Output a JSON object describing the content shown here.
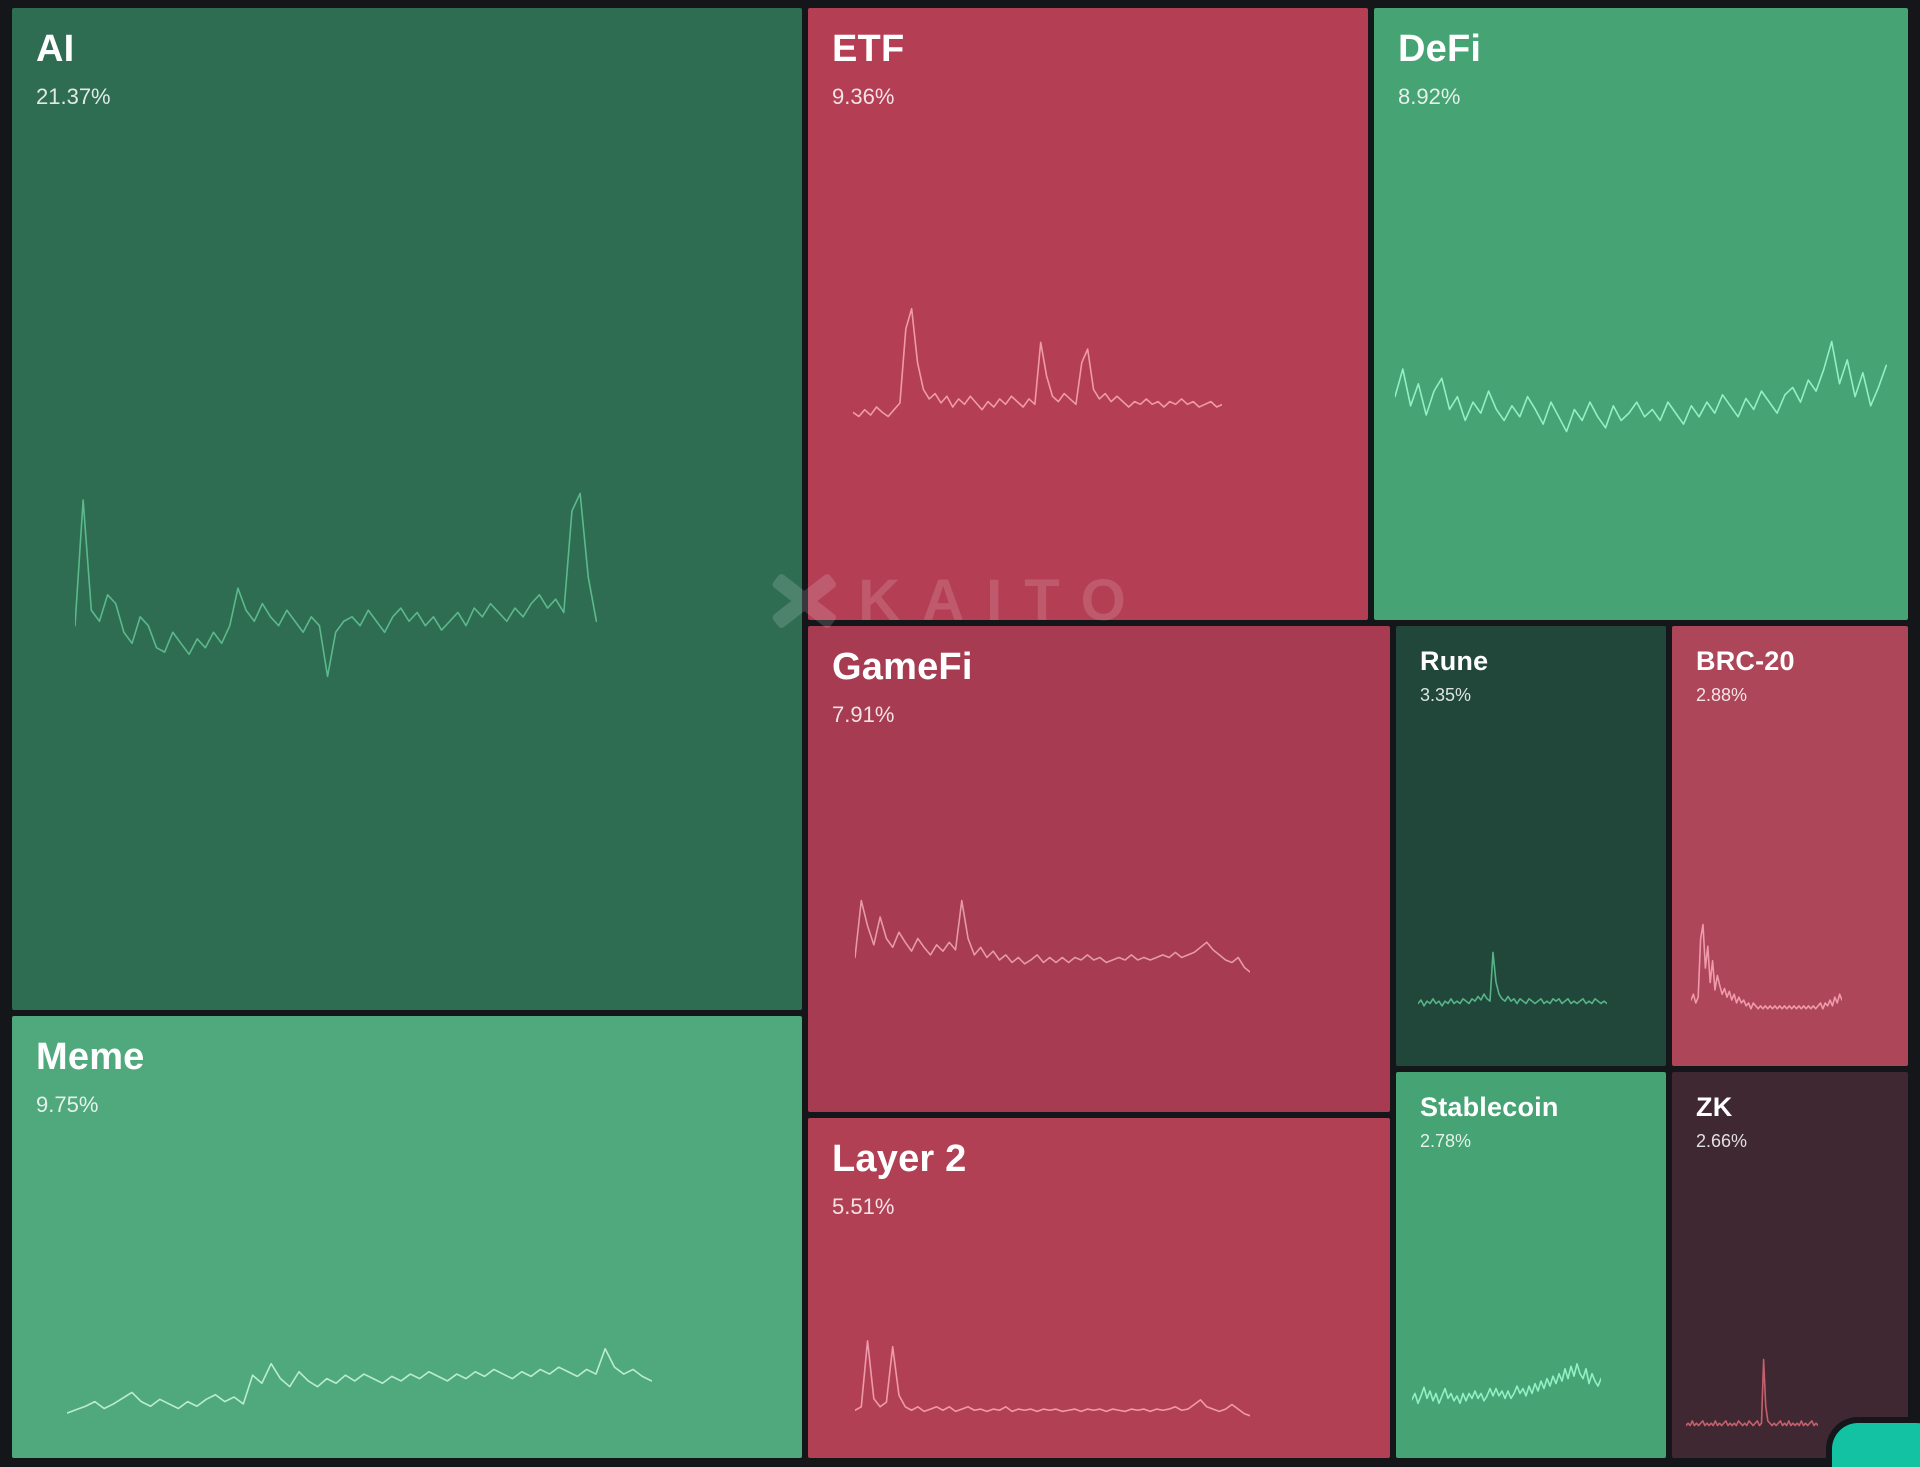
{
  "watermark": {
    "text": "KAITO"
  },
  "chat_widget": {
    "color": "#13c2a3"
  },
  "chart_data": {
    "type": "treemap",
    "title": "Narrative mindshare treemap with sparklines",
    "legend_position": "none",
    "grid": false,
    "sectors": [
      {
        "name": "AI",
        "value": 21.37,
        "label": "21.37%",
        "color": "#2e6d52",
        "spark_color": "#5cb98c",
        "sparkline": [
          38,
          95,
          45,
          40,
          52,
          48,
          35,
          30,
          42,
          38,
          28,
          26,
          35,
          30,
          25,
          32,
          28,
          35,
          30,
          38,
          55,
          45,
          40,
          48,
          42,
          38,
          45,
          40,
          35,
          42,
          38,
          15,
          35,
          40,
          42,
          38,
          45,
          40,
          35,
          42,
          46,
          40,
          44,
          38,
          42,
          36,
          40,
          44,
          38,
          46,
          42,
          48,
          44,
          40,
          46,
          42,
          48,
          52,
          46,
          50,
          44,
          90,
          98,
          60,
          40
        ]
      },
      {
        "name": "ETF",
        "value": 9.36,
        "label": "9.36%",
        "color": "#b43e54",
        "spark_color": "#ef9aa9",
        "sparkline": [
          18,
          15,
          20,
          16,
          22,
          18,
          15,
          20,
          25,
          80,
          95,
          55,
          35,
          28,
          32,
          25,
          30,
          22,
          28,
          24,
          30,
          25,
          20,
          26,
          22,
          28,
          24,
          30,
          26,
          22,
          28,
          24,
          70,
          45,
          30,
          26,
          32,
          28,
          24,
          55,
          65,
          35,
          28,
          32,
          26,
          30,
          26,
          22,
          26,
          24,
          28,
          24,
          26,
          22,
          26,
          24,
          28,
          24,
          26,
          22,
          24,
          26,
          22,
          24
        ]
      },
      {
        "name": "DeFi",
        "value": 8.92,
        "label": "8.92%",
        "color": "#46a374",
        "spark_color": "#93f0c4",
        "sparkline": [
          55,
          70,
          50,
          62,
          45,
          58,
          65,
          48,
          55,
          42,
          52,
          46,
          58,
          48,
          42,
          50,
          44,
          55,
          48,
          40,
          52,
          44,
          36,
          48,
          42,
          52,
          44,
          38,
          50,
          42,
          46,
          52,
          44,
          48,
          42,
          52,
          46,
          40,
          50,
          44,
          52,
          46,
          56,
          50,
          44,
          54,
          48,
          58,
          52,
          46,
          56,
          60,
          52,
          64,
          58,
          70,
          85,
          62,
          75,
          55,
          68,
          50,
          60,
          72
        ]
      },
      {
        "name": "Meme",
        "value": 9.75,
        "label": "9.75%",
        "color": "#50a97c",
        "spark_color": "#baecd4",
        "sparkline": [
          12,
          15,
          18,
          22,
          16,
          20,
          25,
          30,
          22,
          18,
          24,
          20,
          16,
          22,
          18,
          24,
          28,
          22,
          26,
          20,
          45,
          38,
          55,
          42,
          35,
          48,
          40,
          35,
          42,
          38,
          45,
          40,
          46,
          42,
          38,
          44,
          40,
          46,
          42,
          48,
          44,
          40,
          46,
          42,
          48,
          44,
          50,
          46,
          42,
          48,
          44,
          50,
          46,
          52,
          48,
          44,
          50,
          46,
          68,
          52,
          46,
          50,
          44,
          40
        ]
      },
      {
        "name": "GameFi",
        "value": 7.91,
        "label": "7.91%",
        "color": "#a63b51",
        "spark_color": "#e59aa6",
        "sparkline": [
          30,
          75,
          55,
          40,
          62,
          45,
          38,
          50,
          42,
          35,
          45,
          38,
          32,
          40,
          35,
          42,
          36,
          75,
          45,
          32,
          38,
          30,
          35,
          28,
          32,
          26,
          30,
          25,
          28,
          32,
          26,
          30,
          26,
          30,
          26,
          30,
          28,
          32,
          28,
          30,
          26,
          28,
          30,
          28,
          32,
          28,
          30,
          28,
          30,
          32,
          30,
          34,
          30,
          32,
          34,
          38,
          42,
          36,
          32,
          28,
          26,
          30,
          22,
          18
        ]
      },
      {
        "name": "Layer 2",
        "value": 5.51,
        "label": "5.51%",
        "color": "#b24054",
        "spark_color": "#ef9aa9",
        "sparkline": [
          15,
          18,
          75,
          25,
          18,
          22,
          70,
          28,
          18,
          15,
          18,
          14,
          16,
          18,
          15,
          18,
          14,
          16,
          18,
          15,
          16,
          14,
          16,
          15,
          18,
          14,
          16,
          15,
          16,
          14,
          16,
          15,
          16,
          14,
          15,
          16,
          14,
          16,
          15,
          16,
          14,
          16,
          15,
          14,
          16,
          15,
          16,
          14,
          16,
          15,
          16,
          18,
          15,
          16,
          20,
          24,
          18,
          16,
          14,
          16,
          20,
          16,
          12,
          10
        ]
      },
      {
        "name": "Rune",
        "value": 3.35,
        "label": "3.35%",
        "color": "#21473a",
        "spark_color": "#57b388",
        "sparkline": [
          12,
          15,
          10,
          14,
          12,
          16,
          12,
          14,
          10,
          14,
          12,
          16,
          12,
          14,
          12,
          16,
          14,
          12,
          16,
          14,
          18,
          15,
          20,
          16,
          14,
          55,
          30,
          20,
          16,
          14,
          18,
          14,
          16,
          12,
          16,
          14,
          12,
          16,
          14,
          12,
          14,
          16,
          12,
          14,
          12,
          16,
          14,
          16,
          12,
          14,
          16,
          12,
          14,
          12,
          14,
          16,
          12,
          14,
          12,
          16,
          14,
          12,
          14,
          12
        ]
      },
      {
        "name": "BRC-20",
        "value": 2.88,
        "label": "2.88%",
        "color": "#ad4659",
        "spark_color": "#ef9aa9",
        "sparkline": [
          18,
          22,
          16,
          20,
          60,
          70,
          40,
          55,
          30,
          45,
          25,
          35,
          28,
          22,
          26,
          20,
          24,
          18,
          22,
          16,
          20,
          16,
          18,
          14,
          16,
          12,
          16,
          14,
          12,
          14,
          12,
          14,
          12,
          14,
          12,
          14,
          12,
          14,
          12,
          14,
          12,
          14,
          12,
          14,
          12,
          14,
          12,
          14,
          12,
          14,
          12,
          14,
          12,
          14,
          16,
          12,
          16,
          14,
          18,
          14,
          20,
          16,
          22,
          18
        ]
      },
      {
        "name": "Stablecoin",
        "value": 2.78,
        "label": "2.78%",
        "color": "#46a374",
        "spark_color": "#93f0c4",
        "sparkline": [
          25,
          30,
          22,
          28,
          35,
          26,
          32,
          24,
          30,
          22,
          28,
          34,
          26,
          30,
          24,
          28,
          22,
          30,
          24,
          30,
          26,
          32,
          26,
          30,
          24,
          28,
          34,
          28,
          34,
          28,
          32,
          26,
          32,
          26,
          30,
          36,
          30,
          34,
          28,
          36,
          30,
          38,
          32,
          40,
          34,
          42,
          36,
          44,
          38,
          46,
          40,
          50,
          42,
          52,
          44,
          54,
          46,
          42,
          50,
          38,
          46,
          40,
          36,
          42
        ]
      },
      {
        "name": "ZK",
        "value": 2.66,
        "label": "2.66%",
        "color": "#3f2831",
        "spark_color": "#c4606e",
        "sparkline": [
          8,
          10,
          8,
          12,
          8,
          10,
          8,
          10,
          12,
          8,
          10,
          8,
          10,
          8,
          12,
          8,
          10,
          8,
          10,
          12,
          8,
          10,
          8,
          10,
          8,
          12,
          10,
          8,
          10,
          8,
          12,
          10,
          8,
          10,
          12,
          8,
          10,
          65,
          25,
          12,
          10,
          8,
          10,
          8,
          10,
          12,
          8,
          10,
          8,
          12,
          8,
          10,
          8,
          10,
          8,
          12,
          8,
          10,
          8,
          10,
          12,
          8,
          10,
          8
        ]
      }
    ]
  }
}
